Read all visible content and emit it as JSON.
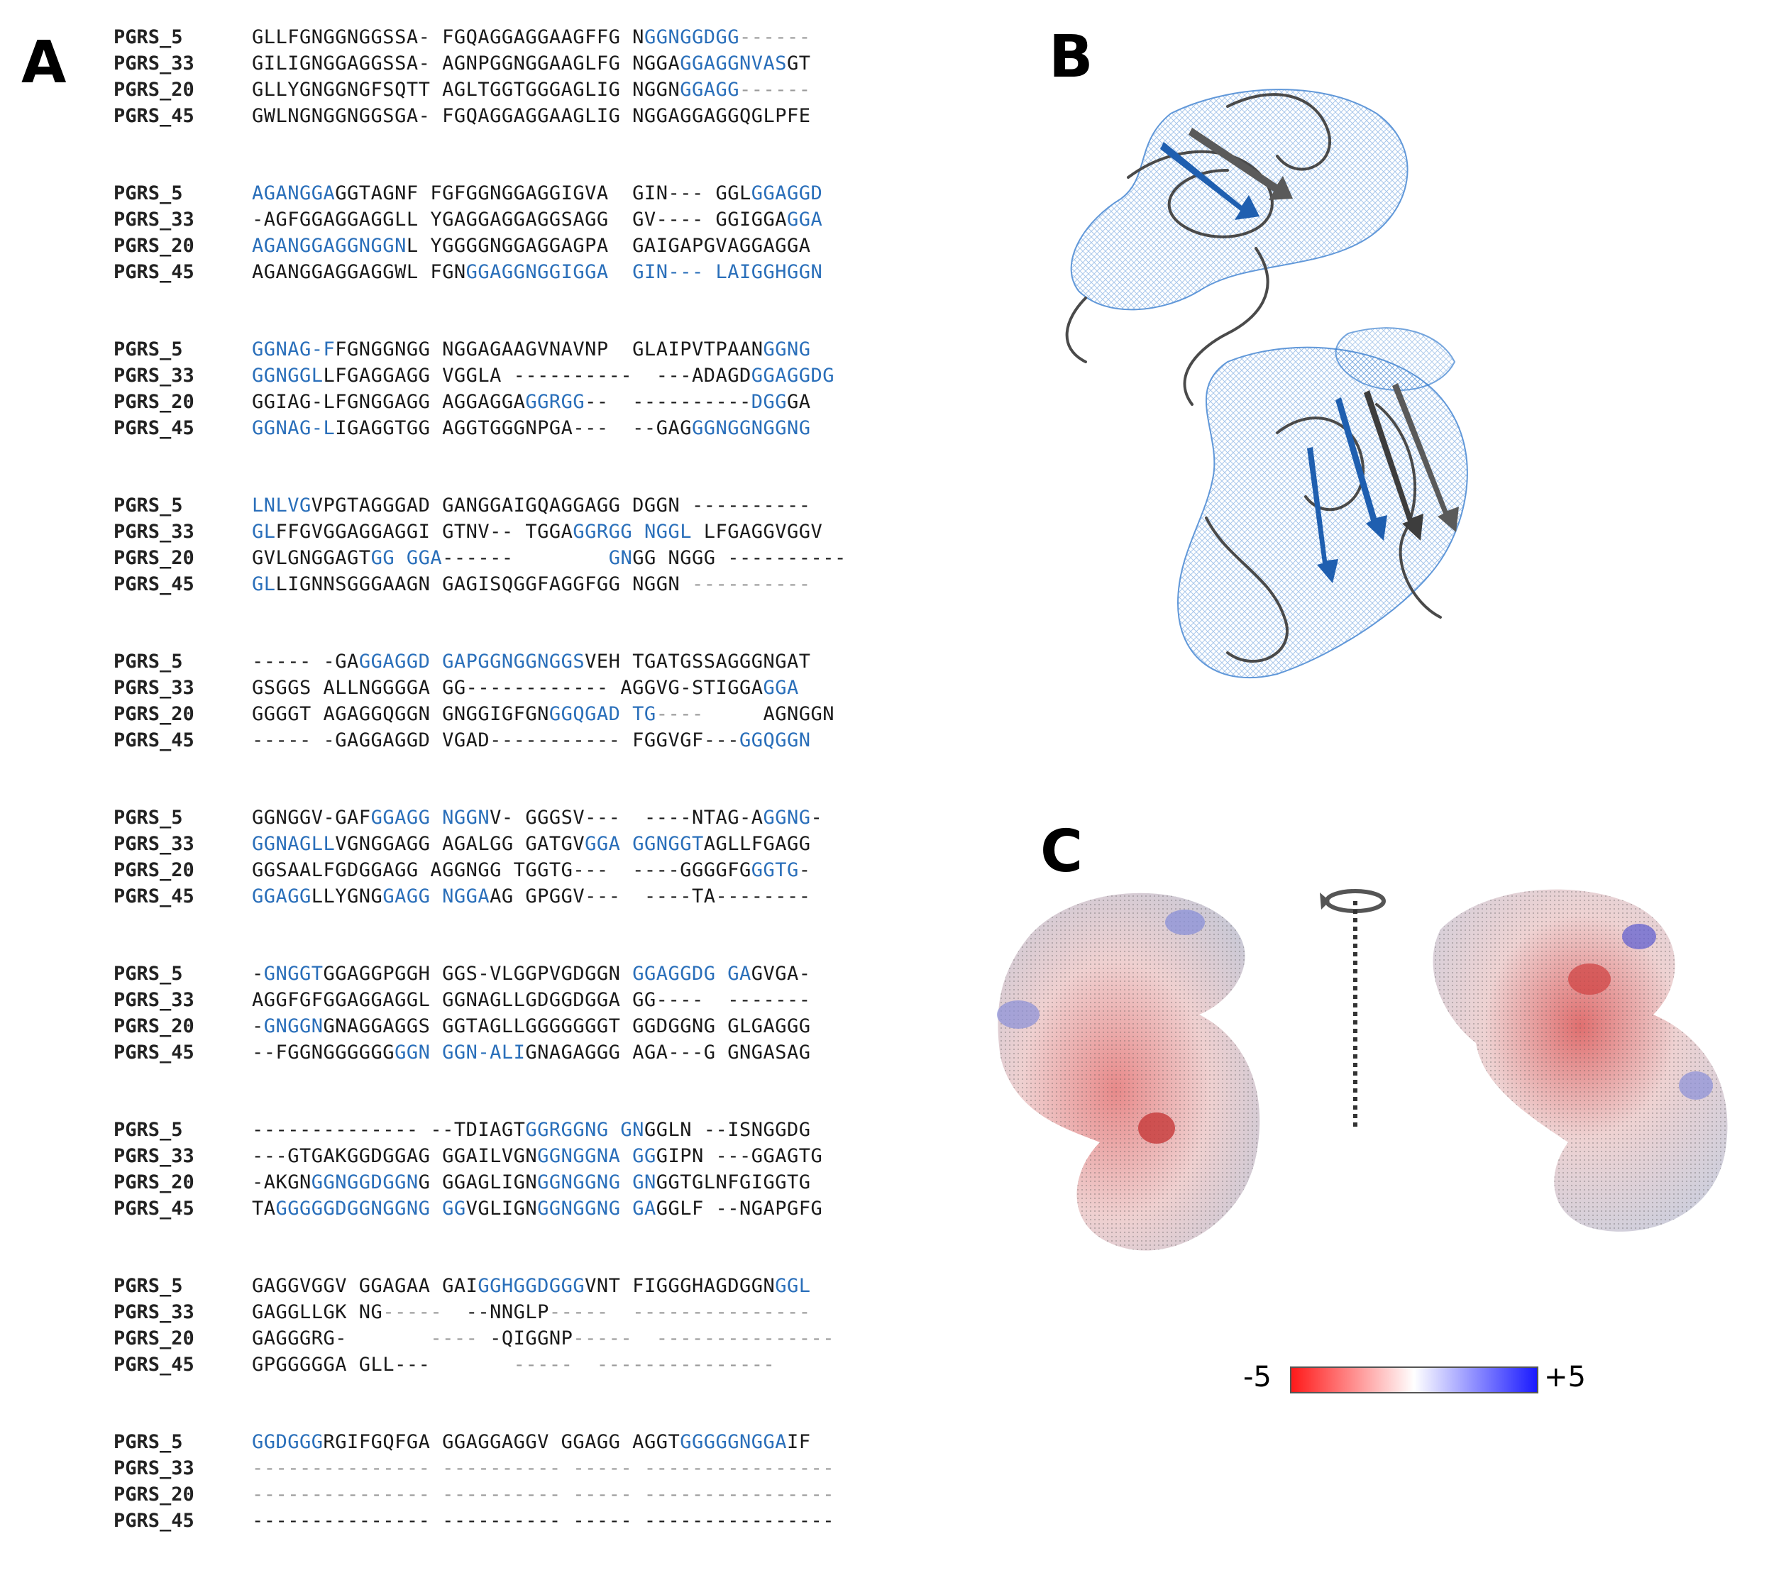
{
  "panels": {
    "a_label": "A",
    "b_label": "B",
    "c_label": "C"
  },
  "alignment": {
    "blocks": [
      {
        "rows": [
          {
            "name": "PGRS_5",
            "segments": [
              {
                "t": "GLLFGNGGNGGSSA- FGQAGGAGGAAGFFG N",
                "c": "n"
              },
              {
                "t": "GGNGGDGG",
                "c": "h"
              },
              {
                "t": "------",
                "c": "g"
              }
            ]
          },
          {
            "name": "PGRS_33",
            "segments": [
              {
                "t": "GILIGNGGAGGSSA- AGNPGGNGGAAGLFG NGGA",
                "c": "n"
              },
              {
                "t": "GGAGGNVAS",
                "c": "h"
              },
              {
                "t": "GT",
                "c": "n"
              }
            ]
          },
          {
            "name": "PGRS_20",
            "segments": [
              {
                "t": "GLLYGNGGNGFSQTT AGLTGGTGGGAGLIG NGGN",
                "c": "n"
              },
              {
                "t": "GGAGG",
                "c": "h"
              },
              {
                "t": "------",
                "c": "g"
              }
            ]
          },
          {
            "name": "PGRS_45",
            "segments": [
              {
                "t": "GWLNGNGGNGGSGA- FGQAGGAGGAAGLIG NGGAGGAGGQGLPFE",
                "c": "n"
              }
            ]
          }
        ]
      },
      {
        "rows": [
          {
            "name": "PGRS_5",
            "segments": [
              {
                "t": "AGANGGA",
                "c": "h"
              },
              {
                "t": "GGTAGNF FGFGGNGGAGGIGVA  GIN--- GGL",
                "c": "n"
              },
              {
                "t": "GGAGGD",
                "c": "h"
              }
            ]
          },
          {
            "name": "PGRS_33",
            "segments": [
              {
                "t": "-AGFGGAGGAGGLL YGAGGAGGAGGSAGG  GV---- GGIGGA",
                "c": "n"
              },
              {
                "t": "GGA",
                "c": "h"
              }
            ]
          },
          {
            "name": "PGRS_20",
            "segments": [
              {
                "t": "AGANGGAGGNGGN",
                "c": "h"
              },
              {
                "t": "L YGGGGNGGAGGAGPA  GAIGAPGVAGGAGGA",
                "c": "n"
              }
            ]
          },
          {
            "name": "PGRS_45",
            "segments": [
              {
                "t": "AGANGGAGGAGGWL FGN",
                "c": "n"
              },
              {
                "t": "GGAGGNGGIGGA",
                "c": "h"
              },
              {
                "t": "  ",
                "c": "n"
              },
              {
                "t": "GIN---",
                "c": "h"
              },
              {
                "t": " ",
                "c": "n"
              },
              {
                "t": "LAIGGHGGN",
                "c": "h"
              }
            ]
          }
        ]
      },
      {
        "rows": [
          {
            "name": "PGRS_5",
            "segments": [
              {
                "t": "GGNAG-F",
                "c": "h"
              },
              {
                "t": "FGNGGNGG NGGAGAAGVNAVNP  GLAIPVTPAAN",
                "c": "n"
              },
              {
                "t": "GGNG",
                "c": "h"
              }
            ]
          },
          {
            "name": "PGRS_33",
            "segments": [
              {
                "t": "GGNGGL",
                "c": "h"
              },
              {
                "t": "LFGAGGAGG VGGLA ----------  ---ADAGD",
                "c": "n"
              },
              {
                "t": "GGAGGDG",
                "c": "h"
              }
            ]
          },
          {
            "name": "PGRS_20",
            "segments": [
              {
                "t": "GGIAG-LFGNGGAGG AGGAGGA",
                "c": "n"
              },
              {
                "t": "GGRGG",
                "c": "h"
              },
              {
                "t": "--  ----------",
                "c": "n"
              },
              {
                "t": "DGG",
                "c": "h"
              },
              {
                "t": "GA",
                "c": "n"
              }
            ]
          },
          {
            "name": "PGRS_45",
            "segments": [
              {
                "t": "GGNAG-L",
                "c": "h"
              },
              {
                "t": "IGAGGTGG AGGTGGGNPGA---  --GAG",
                "c": "n"
              },
              {
                "t": "GGNGGNGGNG",
                "c": "h"
              }
            ]
          }
        ]
      },
      {
        "rows": [
          {
            "name": "PGRS_5",
            "segments": [
              {
                "t": "LNLVG",
                "c": "h"
              },
              {
                "t": "VPGTAGGGAD GANGGAIGQAGGAGG DGGN ----------",
                "c": "n"
              }
            ]
          },
          {
            "name": "PGRS_33",
            "segments": [
              {
                "t": "GL",
                "c": "h"
              },
              {
                "t": "FFGVGGAGGAGGI GTNV-- TGGA",
                "c": "n"
              },
              {
                "t": "GGRGG NGGL",
                "c": "h"
              },
              {
                "t": " LFGAGGVGGV",
                "c": "n"
              }
            ]
          },
          {
            "name": "PGRS_20",
            "segments": [
              {
                "t": "GVLGNGGAGT",
                "c": "n"
              },
              {
                "t": "GG GGA",
                "c": "h"
              },
              {
                "t": "------        ",
                "c": "n"
              },
              {
                "t": "GN",
                "c": "h"
              },
              {
                "t": "GG NGGG ----------",
                "c": "n"
              }
            ]
          },
          {
            "name": "PGRS_45",
            "segments": [
              {
                "t": "GL",
                "c": "h"
              },
              {
                "t": "LIGNNSGGGAAGN GAGISQGGFAGGFGG NGGN ",
                "c": "n"
              },
              {
                "t": "----------",
                "c": "g"
              }
            ]
          }
        ]
      },
      {
        "rows": [
          {
            "name": "PGRS_5",
            "segments": [
              {
                "t": "----- -GA",
                "c": "n"
              },
              {
                "t": "GGAGGD GAPGGNGGNGGS",
                "c": "h"
              },
              {
                "t": "VEH TGATGSSAGGGNGAT",
                "c": "n"
              }
            ]
          },
          {
            "name": "PGRS_33",
            "segments": [
              {
                "t": "GSGGS ALLNGGGGA GG------------ AGGVG-STIGGA",
                "c": "n"
              },
              {
                "t": "GGA",
                "c": "h"
              }
            ]
          },
          {
            "name": "PGRS_20",
            "segments": [
              {
                "t": "GGGGT AGAGGQGGN GNGGIGFGN",
                "c": "n"
              },
              {
                "t": "GGQGAD TG",
                "c": "h"
              },
              {
                "t": "----",
                "c": "g"
              },
              {
                "t": "     AGNGGN",
                "c": "n"
              }
            ]
          },
          {
            "name": "PGRS_45",
            "segments": [
              {
                "t": "----- -GAGGAGGD VGAD----------- FGGVGF---",
                "c": "n"
              },
              {
                "t": "GGQGGN",
                "c": "h"
              }
            ]
          }
        ]
      },
      {
        "rows": [
          {
            "name": "PGRS_5",
            "segments": [
              {
                "t": "GGNGGV-GAF",
                "c": "n"
              },
              {
                "t": "GGAGG NGGN",
                "c": "h"
              },
              {
                "t": "V- GGGSV---  ----NTAG-A",
                "c": "n"
              },
              {
                "t": "GGNG",
                "c": "h"
              },
              {
                "t": "-",
                "c": "n"
              }
            ]
          },
          {
            "name": "PGRS_33",
            "segments": [
              {
                "t": "GGNAGLL",
                "c": "h"
              },
              {
                "t": "VGNGGAGG AGALGG GATGV",
                "c": "n"
              },
              {
                "t": "GGA GGNGGT",
                "c": "h"
              },
              {
                "t": "AGLLFGAGG",
                "c": "n"
              }
            ]
          },
          {
            "name": "PGRS_20",
            "segments": [
              {
                "t": "GGSAALFGDGGAGG AGGNGG TGGTG---  ----GGGGFG",
                "c": "n"
              },
              {
                "t": "GGTG",
                "c": "h"
              },
              {
                "t": "-",
                "c": "n"
              }
            ]
          },
          {
            "name": "PGRS_45",
            "segments": [
              {
                "t": "GGAGG",
                "c": "h"
              },
              {
                "t": "LLYGNG",
                "c": "n"
              },
              {
                "t": "GAGG NGGA",
                "c": "h"
              },
              {
                "t": "AG GPGGV---  ----TA--------",
                "c": "n"
              }
            ]
          }
        ]
      },
      {
        "rows": [
          {
            "name": "PGRS_5",
            "segments": [
              {
                "t": "-",
                "c": "n"
              },
              {
                "t": "GNGGT",
                "c": "h"
              },
              {
                "t": "GGAGGPGGH GGS-VLGGPVGDGGN ",
                "c": "n"
              },
              {
                "t": "GGAGGDG GA",
                "c": "h"
              },
              {
                "t": "GVGA-",
                "c": "n"
              }
            ]
          },
          {
            "name": "PGRS_33",
            "segments": [
              {
                "t": "AGGFGFGGAGGAGGL GGNAGLLGDGGDGGA GG----  -------",
                "c": "n"
              }
            ]
          },
          {
            "name": "PGRS_20",
            "segments": [
              {
                "t": "-",
                "c": "n"
              },
              {
                "t": "GNGGN",
                "c": "h"
              },
              {
                "t": "GNAGGAGGS GGTAGLLGGGGGGGT GGDGGNG GLGAGGG",
                "c": "n"
              }
            ]
          },
          {
            "name": "PGRS_45",
            "segments": [
              {
                "t": "--FGGNGGGGGG",
                "c": "n"
              },
              {
                "t": "GGN GGN-ALI",
                "c": "h"
              },
              {
                "t": "GNAGAGGG AGA---G GNGASAG",
                "c": "n"
              }
            ]
          }
        ]
      },
      {
        "rows": [
          {
            "name": "PGRS_5",
            "segments": [
              {
                "t": "-------------- --TDIAGT",
                "c": "n"
              },
              {
                "t": "GGRGGNG GN",
                "c": "h"
              },
              {
                "t": "GGLN --ISNGGDG",
                "c": "n"
              }
            ]
          },
          {
            "name": "PGRS_33",
            "segments": [
              {
                "t": "---GTGAKGGDGGAG GGAILVGN",
                "c": "n"
              },
              {
                "t": "GGNGGNA GG",
                "c": "h"
              },
              {
                "t": "GIPN ---GGAGTG",
                "c": "n"
              }
            ]
          },
          {
            "name": "PGRS_20",
            "segments": [
              {
                "t": "-AKGN",
                "c": "n"
              },
              {
                "t": "GGNGGDGGN",
                "c": "h"
              },
              {
                "t": "G GGAGLIGN",
                "c": "n"
              },
              {
                "t": "GGNGGNG GN",
                "c": "h"
              },
              {
                "t": "GGTGLNFGIGGTG",
                "c": "n"
              }
            ]
          },
          {
            "name": "PGRS_45",
            "segments": [
              {
                "t": "TA",
                "c": "n"
              },
              {
                "t": "GGGGGDGGNGGNG GG",
                "c": "h"
              },
              {
                "t": "VGLIGN",
                "c": "n"
              },
              {
                "t": "GGNGGNG GA",
                "c": "h"
              },
              {
                "t": "GGLF --NGAPGFG",
                "c": "n"
              }
            ]
          }
        ]
      },
      {
        "rows": [
          {
            "name": "PGRS_5",
            "segments": [
              {
                "t": "GAGGVGGV GGAGAA GAI",
                "c": "n"
              },
              {
                "t": "GGHGGDGGG",
                "c": "h"
              },
              {
                "t": "VNT FIGGGHAGDGGN",
                "c": "n"
              },
              {
                "t": "GGL",
                "c": "h"
              }
            ]
          },
          {
            "name": "PGRS_33",
            "segments": [
              {
                "t": "GAGGLLGK NG",
                "c": "n"
              },
              {
                "t": "-----",
                "c": "g"
              },
              {
                "t": "  --NNGLP",
                "c": "n"
              },
              {
                "t": "-----  ---------------",
                "c": "g"
              }
            ]
          },
          {
            "name": "PGRS_20",
            "segments": [
              {
                "t": "GAGGGRG-",
                "c": "n"
              },
              {
                "t": "       ----",
                "c": "g"
              },
              {
                "t": " -QIGGNP",
                "c": "n"
              },
              {
                "t": "-----  ---------------",
                "c": "g"
              }
            ]
          },
          {
            "name": "PGRS_45",
            "segments": [
              {
                "t": "GPGGGGGA GLL---",
                "c": "n"
              },
              {
                "t": "       -----  ---------------",
                "c": "g"
              }
            ]
          }
        ]
      },
      {
        "rows": [
          {
            "name": "PGRS_5",
            "segments": [
              {
                "t": "GGDGGG",
                "c": "h"
              },
              {
                "t": "RGIFGQFGA GGAGGAGGV GGAGG AGGT",
                "c": "n"
              },
              {
                "t": "GGGGGNGGA",
                "c": "h"
              },
              {
                "t": "IF",
                "c": "n"
              }
            ]
          },
          {
            "name": "PGRS_33",
            "segments": [
              {
                "t": "--------------- ---------- ----- ----------------",
                "c": "g"
              }
            ]
          },
          {
            "name": "PGRS_20",
            "segments": [
              {
                "t": "--------------- ---------- ----- ----------------",
                "c": "g"
              }
            ]
          },
          {
            "name": "PGRS_45",
            "segments": [
              {
                "t": "--------------- ---------- ----- ----------------",
                "c": "n"
              }
            ]
          }
        ]
      }
    ]
  },
  "colorscale": {
    "min_label": "-5",
    "max_label": "+5",
    "low_color": "#ff1a1a",
    "mid_color": "#ffffff",
    "high_color": "#1a1aff"
  },
  "colors": {
    "highlight": "#2a6fba",
    "cartoon": "#4a4a4a",
    "mesh": "#3a7fd0"
  }
}
